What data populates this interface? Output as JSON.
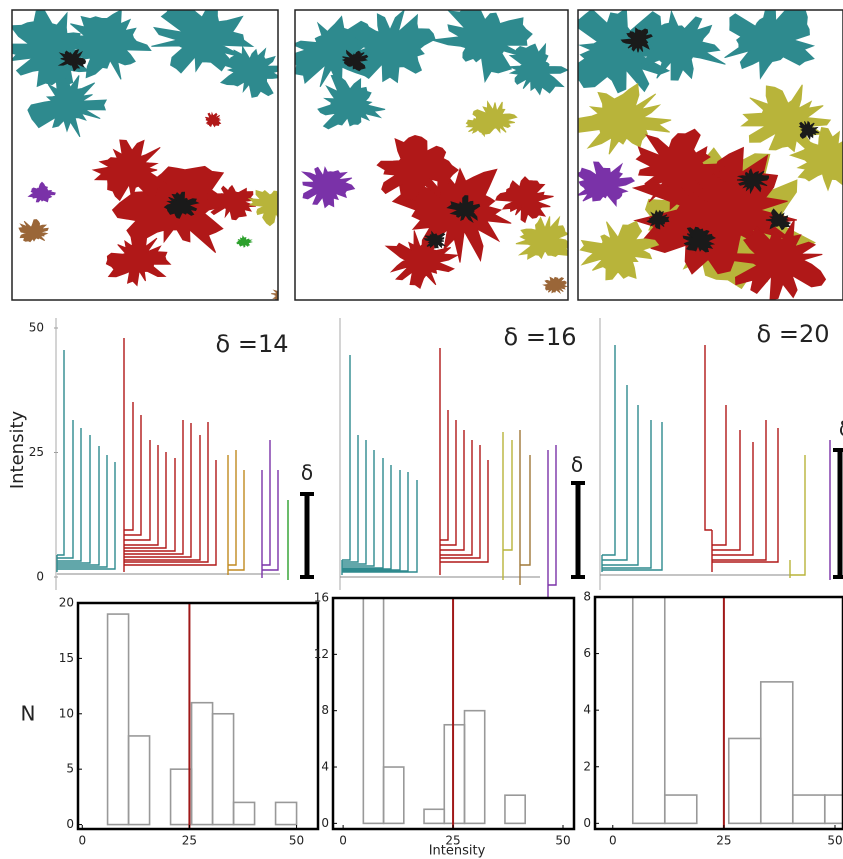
{
  "dendrograms": {
    "y_label": "Intensity",
    "ylim": [
      0,
      50
    ],
    "yticks": [
      0,
      25,
      50
    ],
    "panels": [
      {
        "label": "δ =14",
        "bar_label": "δ"
      },
      {
        "label": "δ =16",
        "bar_label": "δ"
      },
      {
        "label": "δ =20",
        "bar_label": "δ"
      }
    ]
  },
  "chart_data": [
    {
      "type": "histogram",
      "y_label": "N",
      "color": "#999999",
      "threshold": 25,
      "threshold_color": "#a01818",
      "bins": [
        1,
        5.9,
        10.8,
        15.7,
        20.6,
        25.5,
        30.4,
        35.3,
        40.2,
        45.1,
        50
      ],
      "counts": [
        0,
        19,
        8,
        0,
        5,
        11,
        10,
        2,
        0,
        2
      ],
      "xlim": [
        -1,
        55
      ],
      "ylim": [
        -0.4,
        20
      ],
      "xticks": [
        0,
        25,
        50
      ],
      "yticks": [
        0,
        5,
        10,
        15,
        20
      ]
    },
    {
      "type": "histogram",
      "x_label": "Intensity",
      "color": "#999999",
      "threshold": 25,
      "threshold_color": "#a01818",
      "bins": [
        0,
        4.6,
        9.2,
        13.8,
        18.4,
        23,
        27.6,
        32.2,
        36.8,
        41.4,
        46
      ],
      "counts": [
        0,
        16,
        4,
        0,
        1,
        7,
        8,
        0,
        2,
        0
      ],
      "xlim": [
        -2.3,
        52.5
      ],
      "ylim": [
        -0.4,
        16
      ],
      "xticks": [
        0,
        25,
        50
      ],
      "yticks": [
        0,
        4,
        8,
        12,
        16
      ]
    },
    {
      "type": "histogram",
      "color": "#999999",
      "threshold": 25,
      "threshold_color": "#a01818",
      "bins": [
        4.5,
        11.7,
        18.9,
        26.1,
        33.3,
        40.5,
        47.7,
        54.9
      ],
      "counts": [
        8,
        1,
        0,
        3,
        5,
        1,
        1
      ],
      "xlim": [
        -4,
        51.8
      ],
      "ylim": [
        -0.2,
        8
      ],
      "xticks": [
        0,
        25,
        50
      ],
      "yticks": [
        0,
        2,
        4,
        6,
        8
      ]
    }
  ]
}
